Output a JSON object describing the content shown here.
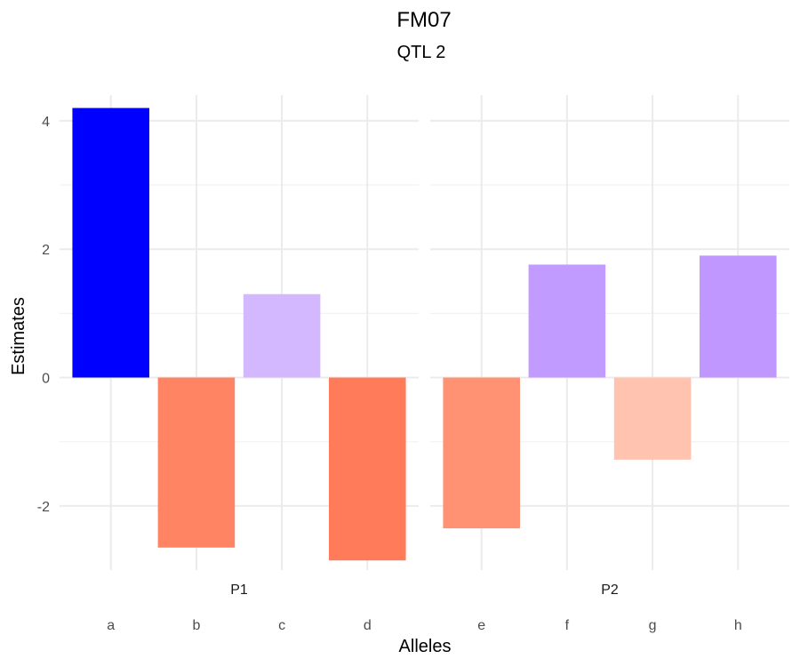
{
  "chart_data": {
    "type": "bar",
    "title": "FM07",
    "subtitle": "QTL 2",
    "xlabel": "Alleles",
    "ylabel": "Estimates",
    "ylim": [
      -3.0,
      4.4
    ],
    "yticks": [
      -2,
      0,
      2,
      4
    ],
    "ytick_labels": [
      "-2",
      "0",
      "2",
      "4"
    ],
    "grid": true,
    "legend": "none",
    "panels": [
      {
        "label": "P1",
        "categories": [
          "a",
          "b",
          "c",
          "d"
        ],
        "values": [
          4.2,
          -2.65,
          1.3,
          -2.85
        ],
        "colors": [
          "#0000ff",
          "#ff8463",
          "#d4b8ff",
          "#ff7b5a"
        ]
      },
      {
        "label": "P2",
        "categories": [
          "e",
          "f",
          "g",
          "h"
        ],
        "values": [
          -2.35,
          1.76,
          -1.28,
          1.9
        ],
        "colors": [
          "#ff9273",
          "#c19bff",
          "#ffc3b0",
          "#bf97ff"
        ]
      }
    ]
  }
}
